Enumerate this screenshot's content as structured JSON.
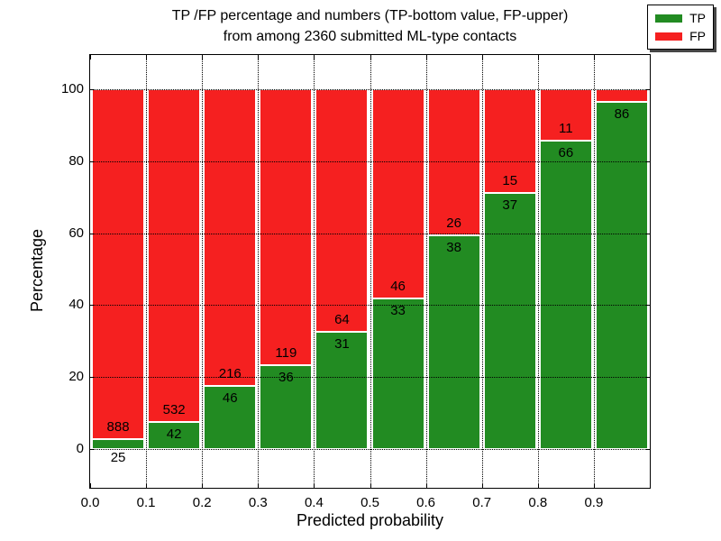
{
  "chart_data": {
    "type": "bar",
    "stacked": true,
    "normalized_per_bin_to": 100,
    "title_lines": [
      "TP /FP percentage and numbers (TP-bottom value, FP-upper)",
      "from among 2360 submitted ML-type contacts"
    ],
    "xlabel": "Predicted probability",
    "ylabel": "Percentage",
    "total_submitted": 2360,
    "xlim": [
      0.0,
      1.0
    ],
    "ylim": [
      -10.9,
      109.6
    ],
    "x_ticks": [
      0.0,
      0.1,
      0.2,
      0.3,
      0.4,
      0.5,
      0.6,
      0.7,
      0.8,
      0.9,
      1.0
    ],
    "x_tick_labels": [
      "0.0",
      "0.1",
      "0.2",
      "0.3",
      "0.4",
      "0.5",
      "0.6",
      "0.7",
      "0.8",
      "0.9"
    ],
    "y_ticks": [
      0,
      20,
      40,
      60,
      80,
      100
    ],
    "grid": {
      "linestyle": "dotted",
      "color": "#000000"
    },
    "colors": {
      "tp": "#228b22",
      "fp": "#f52020"
    },
    "legend": {
      "position": "upper right",
      "entries": [
        {
          "label": "TP",
          "series": "tp"
        },
        {
          "label": "FP",
          "series": "fp"
        }
      ]
    },
    "bins": [
      {
        "x_start": 0.0,
        "x_end": 0.1,
        "tp": 25,
        "fp": 888,
        "fp_label_shown": true
      },
      {
        "x_start": 0.1,
        "x_end": 0.2,
        "tp": 42,
        "fp": 532,
        "fp_label_shown": true
      },
      {
        "x_start": 0.2,
        "x_end": 0.3,
        "tp": 46,
        "fp": 216,
        "fp_label_shown": true
      },
      {
        "x_start": 0.3,
        "x_end": 0.4,
        "tp": 36,
        "fp": 119,
        "fp_label_shown": true
      },
      {
        "x_start": 0.4,
        "x_end": 0.5,
        "tp": 31,
        "fp": 64,
        "fp_label_shown": true
      },
      {
        "x_start": 0.5,
        "x_end": 0.6,
        "tp": 33,
        "fp": 46,
        "fp_label_shown": true
      },
      {
        "x_start": 0.6,
        "x_end": 0.7,
        "tp": 38,
        "fp": 26,
        "fp_label_shown": true
      },
      {
        "x_start": 0.7,
        "x_end": 0.8,
        "tp": 37,
        "fp": 15,
        "fp_label_shown": true
      },
      {
        "x_start": 0.8,
        "x_end": 0.9,
        "tp": 66,
        "fp": 11,
        "fp_label_shown": true
      },
      {
        "x_start": 0.9,
        "x_end": 1.0,
        "tp": 86,
        "fp": 3,
        "fp_label_shown": false
      }
    ]
  }
}
